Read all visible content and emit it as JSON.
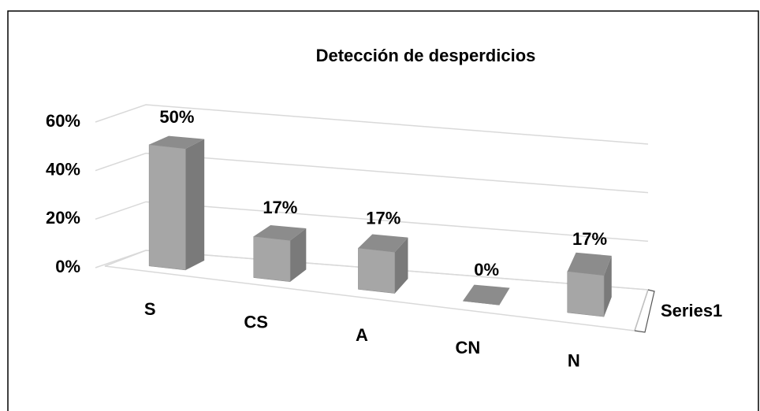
{
  "chart_data": {
    "type": "bar3d",
    "title": "Detección de desperdicios",
    "categories": [
      "S",
      "CS",
      "A",
      "CN",
      "N"
    ],
    "series": [
      {
        "name": "Series1",
        "color": "#a6a6a6",
        "values": [
          50,
          17,
          17,
          0,
          17
        ],
        "value_labels": [
          "50%",
          "17%",
          "17%",
          "0%",
          "17%"
        ]
      }
    ],
    "ylim": [
      0,
      60
    ],
    "yticks": [
      {
        "value": 0,
        "label": "0%"
      },
      {
        "value": 20,
        "label": "20%"
      },
      {
        "value": 40,
        "label": "40%"
      },
      {
        "value": 60,
        "label": "60%"
      }
    ],
    "grid": true
  }
}
